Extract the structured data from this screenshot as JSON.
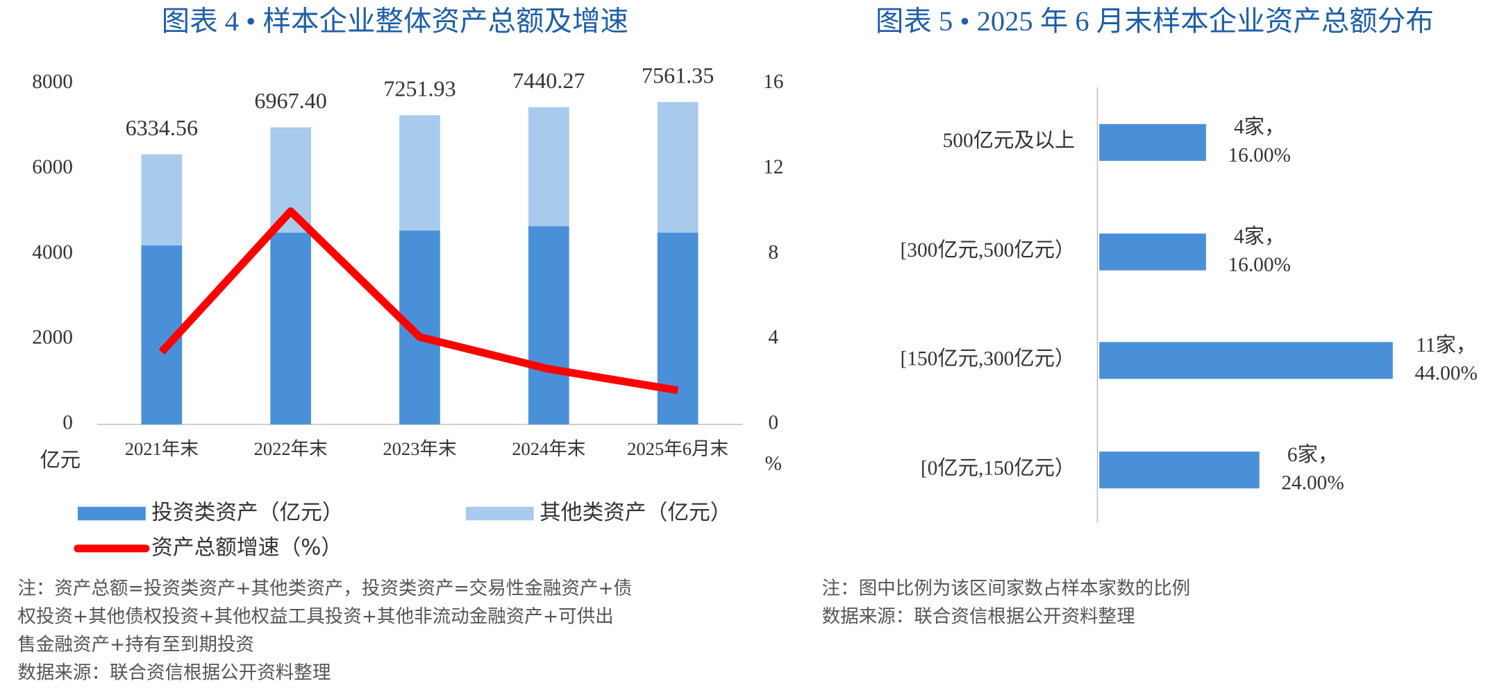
{
  "chart_data": [
    {
      "type": "bar",
      "stacked": true,
      "title": "图表 4 • 样本企业整体资产总额及增速",
      "categories": [
        "2021年末",
        "2022年末",
        "2023年末",
        "2024年末",
        "2025年6月末"
      ],
      "series": [
        {
          "name": "投资类资产（亿元）",
          "color": "#4a90d9",
          "values": [
            4200,
            4500,
            4550,
            4650,
            4500
          ]
        },
        {
          "name": "其他类资产（亿元）",
          "color": "#a8caec",
          "values": [
            2135,
            2467,
            2702,
            2790,
            3061
          ]
        },
        {
          "name": "资产总额增速（%）",
          "type": "line",
          "axis": "y2",
          "color": "#ff0000",
          "values": [
            3.4,
            10.0,
            4.1,
            2.6,
            1.6
          ]
        }
      ],
      "totals": [
        6334.56,
        6967.4,
        7251.93,
        7440.27,
        7561.35
      ],
      "total_labels": [
        "6334.56",
        "6967.40",
        "7251.93",
        "7440.27",
        "7561.35"
      ],
      "ylabel": "亿元",
      "y2label": "%",
      "ylim": [
        0,
        8000
      ],
      "yticks": [
        0,
        2000,
        4000,
        6000,
        8000
      ],
      "y2lim": [
        0,
        16
      ],
      "y2ticks": [
        0,
        4,
        8,
        12,
        16
      ],
      "grid": false,
      "note": [
        "注：资产总额=投资类资产+其他类资产，投资类资产=交易性金融资产+债",
        "权投资+其他债权投资+其他权益工具投资+其他非流动金融资产+可供出",
        "售金融资产+持有至到期投资"
      ],
      "source": "数据来源：联合资信根据公开资料整理"
    },
    {
      "type": "hbar",
      "title": "图表 5 • 2025 年 6 月末样本企业资产总额分布",
      "categories": [
        "500亿元及以上",
        "[300亿元,500亿元）",
        "[150亿元,300亿元）",
        "[0亿元,150亿元）"
      ],
      "values": [
        4,
        4,
        11,
        6
      ],
      "value_labels": [
        "4家，",
        "4家，",
        "11家，",
        "6家，"
      ],
      "share_labels": [
        "16.00%",
        "16.00%",
        "44.00%",
        "24.00%"
      ],
      "color": "#4a90d9",
      "note": [
        "注：图中比例为该区间家数占样本家数的比例"
      ],
      "source": "数据来源：联合资信根据公开资料整理"
    }
  ]
}
